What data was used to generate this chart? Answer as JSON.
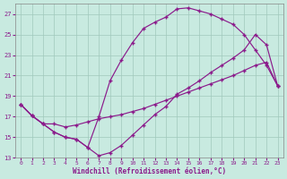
{
  "xlabel": "Windchill (Refroidissement éolien,°C)",
  "background_color": "#c8eae0",
  "grid_color": "#a0c8bc",
  "line_color": "#8b1a8b",
  "xlim_min": -0.5,
  "xlim_max": 23.5,
  "ylim_min": 13,
  "ylim_max": 28,
  "xticks": [
    0,
    1,
    2,
    3,
    4,
    5,
    6,
    7,
    8,
    9,
    10,
    11,
    12,
    13,
    14,
    15,
    16,
    17,
    18,
    19,
    20,
    21,
    22,
    23
  ],
  "yticks": [
    13,
    15,
    17,
    19,
    21,
    23,
    25,
    27
  ],
  "line1_x": [
    0,
    1,
    2,
    3,
    4,
    5,
    6,
    7,
    8,
    9,
    10,
    11,
    12,
    13,
    14,
    15,
    16,
    17,
    18,
    19,
    20,
    21,
    22,
    23
  ],
  "line1_y": [
    18.2,
    17.1,
    16.3,
    15.5,
    15.0,
    14.8,
    14.0,
    13.2,
    13.5,
    14.2,
    15.2,
    16.2,
    17.2,
    18.0,
    19.2,
    19.8,
    20.5,
    21.3,
    22.0,
    22.7,
    23.5,
    25.0,
    24.0,
    20.0
  ],
  "line2_x": [
    0,
    1,
    2,
    3,
    4,
    5,
    6,
    7,
    8,
    9,
    10,
    11,
    12,
    13,
    14,
    15,
    16,
    17,
    18,
    19,
    20,
    21,
    22,
    23
  ],
  "line2_y": [
    18.2,
    17.1,
    16.3,
    15.5,
    15.0,
    14.8,
    14.0,
    17.0,
    20.5,
    22.5,
    24.2,
    25.6,
    26.2,
    26.7,
    27.5,
    27.6,
    27.3,
    27.0,
    26.5,
    26.0,
    25.0,
    23.5,
    22.0,
    20.0
  ],
  "line3_x": [
    0,
    1,
    2,
    3,
    4,
    5,
    6,
    7,
    8,
    9,
    10,
    11,
    12,
    13,
    14,
    15,
    16,
    17,
    18,
    19,
    20,
    21,
    22,
    23
  ],
  "line3_y": [
    18.2,
    17.1,
    16.3,
    16.3,
    16.0,
    16.2,
    16.5,
    16.8,
    17.0,
    17.2,
    17.5,
    17.8,
    18.2,
    18.6,
    19.0,
    19.4,
    19.8,
    20.2,
    20.6,
    21.0,
    21.5,
    22.0,
    22.3,
    20.0
  ]
}
